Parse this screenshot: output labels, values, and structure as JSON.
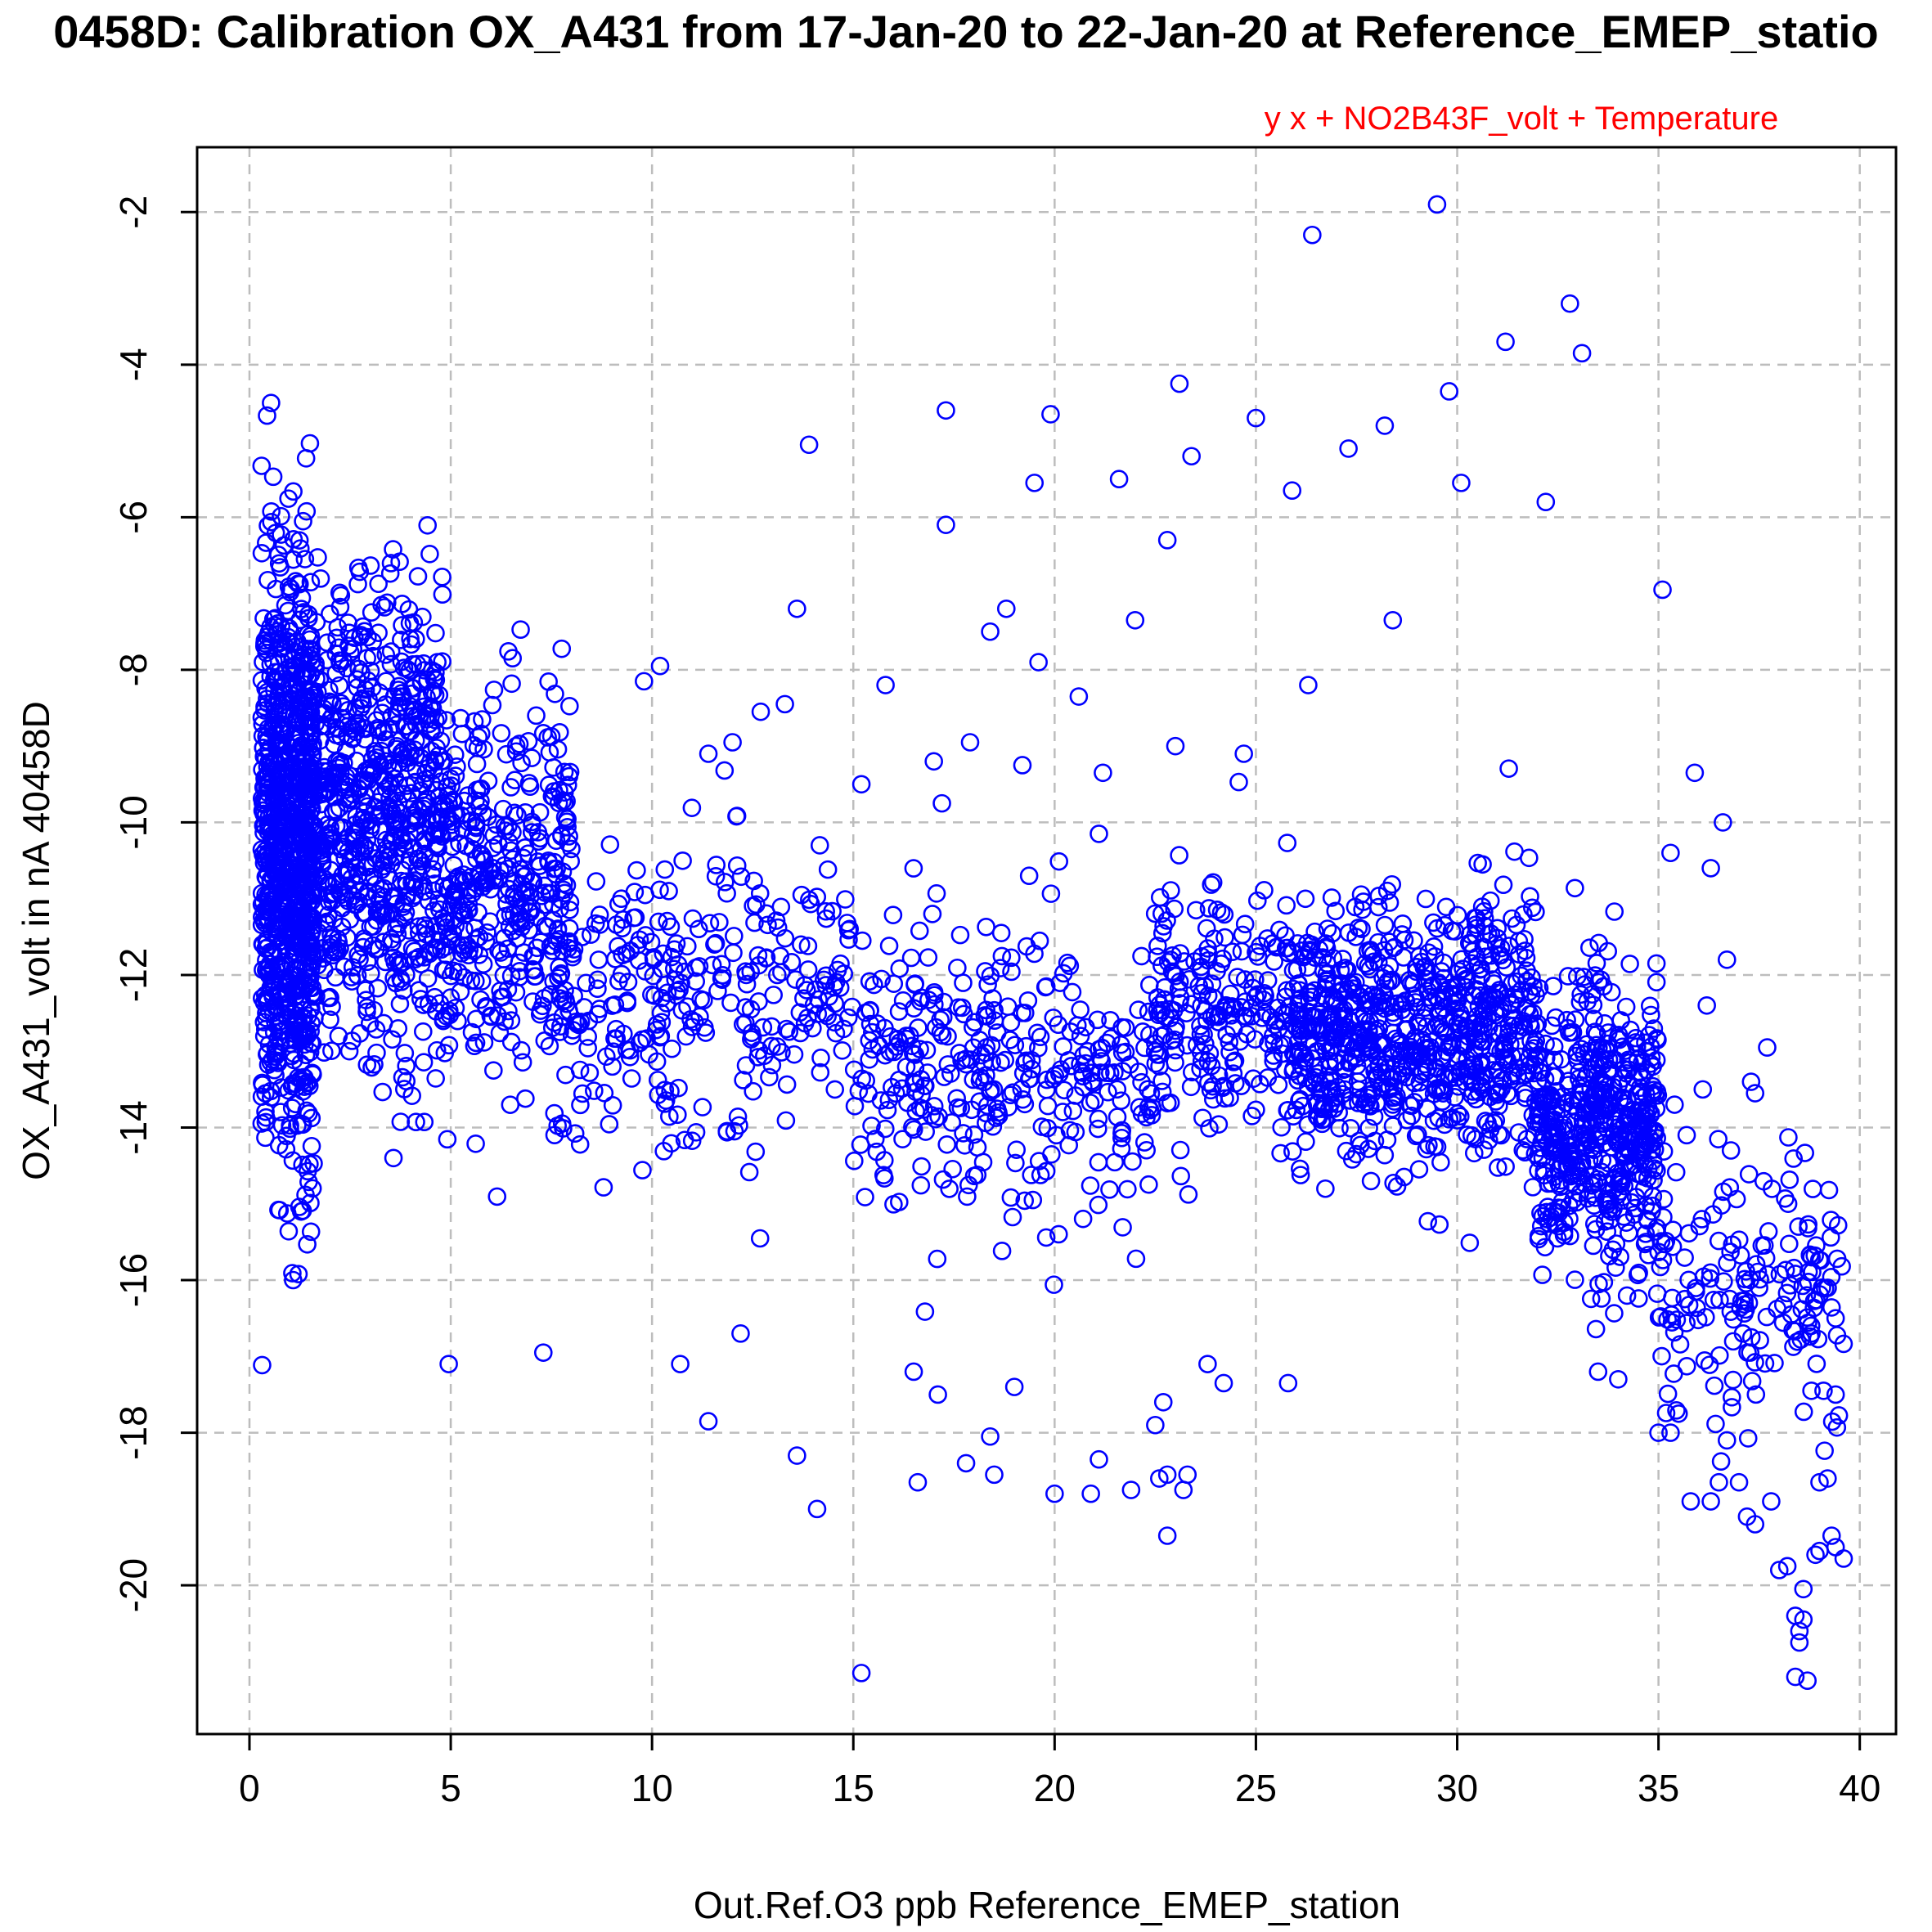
{
  "chart_data": {
    "type": "scatter",
    "title": "0458D: Calibration OX_A431 from 17-Jan-20 to 22-Jan-20 at Reference_EMEP_statio",
    "subtitle": "y x + NO2B43F_volt + Temperature",
    "xlabel": "Out.Ref.O3 ppb Reference_EMEP_station",
    "ylabel": "OX_A431_volt in nA 40458D",
    "xlim": [
      -1.3,
      40.9
    ],
    "ylim": [
      -21.95,
      -1.15
    ],
    "xticks": [
      0,
      5,
      10,
      15,
      20,
      25,
      30,
      35,
      40
    ],
    "yticks": [
      -20,
      -18,
      -16,
      -14,
      -12,
      -10,
      -8,
      -6,
      -4,
      -2
    ],
    "xtick_labels": [
      "0",
      "5",
      "10",
      "15",
      "20",
      "25",
      "30",
      "35",
      "40"
    ],
    "ytick_labels": [
      "-20",
      "-18",
      "-16",
      "-14",
      "-12",
      "-10",
      "-8",
      "-6",
      "-4",
      "-2"
    ],
    "grid": true,
    "marker": "open-circle",
    "clusters": [
      {
        "x_range": [
          0.3,
          1.6
        ],
        "y_center": -10.5,
        "y_spread": 3.8,
        "count": 900
      },
      {
        "x_range": [
          1.4,
          4.8
        ],
        "y_center": -10.0,
        "y_spread": 3.0,
        "count": 750
      },
      {
        "x_range": [
          4.8,
          8.0
        ],
        "y_center": -11.0,
        "y_spread": 2.6,
        "count": 380
      },
      {
        "x_range": [
          7.5,
          15.0
        ],
        "y_center": -12.3,
        "y_spread": 1.9,
        "count": 300
      },
      {
        "x_range": [
          15.0,
          22.5
        ],
        "y_center": -13.2,
        "y_spread": 1.9,
        "count": 340
      },
      {
        "x_range": [
          22.5,
          26.0
        ],
        "y_center": -12.5,
        "y_spread": 1.7,
        "count": 220
      },
      {
        "x_range": [
          26.0,
          30.0
        ],
        "y_center": -12.8,
        "y_spread": 1.6,
        "count": 520
      },
      {
        "x_range": [
          30.0,
          32.0
        ],
        "y_center": -12.7,
        "y_spread": 1.8,
        "count": 260
      },
      {
        "x_range": [
          32.0,
          35.0
        ],
        "y_center": -14.0,
        "y_spread": 1.9,
        "count": 520
      },
      {
        "x_range": [
          35.0,
          39.6
        ],
        "y_center": -16.2,
        "y_spread": 1.6,
        "count": 170
      }
    ],
    "points": [
      [
        29.5,
        -1.9
      ],
      [
        26.4,
        -2.3
      ],
      [
        32.8,
        -3.2
      ],
      [
        33.1,
        -3.85
      ],
      [
        31.2,
        -3.7
      ],
      [
        29.8,
        -4.35
      ],
      [
        23.1,
        -4.25
      ],
      [
        17.3,
        -4.6
      ],
      [
        19.9,
        -4.65
      ],
      [
        25.0,
        -4.7
      ],
      [
        28.2,
        -4.8
      ],
      [
        13.9,
        -5.05
      ],
      [
        27.3,
        -5.1
      ],
      [
        23.4,
        -5.2
      ],
      [
        21.6,
        -5.5
      ],
      [
        19.5,
        -5.55
      ],
      [
        30.1,
        -5.55
      ],
      [
        25.9,
        -5.65
      ],
      [
        32.2,
        -5.8
      ],
      [
        17.3,
        -6.1
      ],
      [
        22.8,
        -6.3
      ],
      [
        35.1,
        -6.95
      ],
      [
        13.6,
        -7.2
      ],
      [
        22.0,
        -7.35
      ],
      [
        18.8,
        -7.2
      ],
      [
        18.4,
        -7.5
      ],
      [
        28.4,
        -7.35
      ],
      [
        19.6,
        -7.9
      ],
      [
        15.8,
        -8.2
      ],
      [
        26.3,
        -8.2
      ],
      [
        20.6,
        -8.35
      ],
      [
        17.9,
        -8.95
      ],
      [
        17.0,
        -9.2
      ],
      [
        19.2,
        -9.25
      ],
      [
        21.2,
        -9.35
      ],
      [
        10.2,
        -7.95
      ],
      [
        9.8,
        -8.15
      ],
      [
        12.0,
        -8.95
      ],
      [
        11.4,
        -9.1
      ],
      [
        13.3,
        -8.45
      ],
      [
        12.7,
        -8.55
      ],
      [
        15.2,
        -9.5
      ],
      [
        17.2,
        -9.75
      ],
      [
        21.1,
        -10.15
      ],
      [
        23.0,
        -9.0
      ],
      [
        24.7,
        -9.1
      ],
      [
        35.9,
        -9.35
      ],
      [
        35.3,
        -10.4
      ],
      [
        36.3,
        -10.6
      ],
      [
        36.6,
        -10.0
      ],
      [
        4.95,
        -17.1
      ],
      [
        7.3,
        -16.95
      ],
      [
        10.7,
        -17.1
      ],
      [
        11.4,
        -17.85
      ],
      [
        12.2,
        -16.7
      ],
      [
        13.6,
        -18.3
      ],
      [
        14.1,
        -19.0
      ],
      [
        15.2,
        -21.15
      ],
      [
        16.6,
        -18.65
      ],
      [
        16.5,
        -17.2
      ],
      [
        18.4,
        -18.05
      ],
      [
        18.5,
        -18.55
      ],
      [
        17.8,
        -18.4
      ],
      [
        17.1,
        -17.5
      ],
      [
        20.0,
        -18.8
      ],
      [
        20.9,
        -18.8
      ],
      [
        21.1,
        -18.35
      ],
      [
        21.9,
        -18.75
      ],
      [
        22.5,
        -17.9
      ],
      [
        22.6,
        -18.6
      ],
      [
        22.8,
        -19.35
      ],
      [
        23.2,
        -18.75
      ],
      [
        23.3,
        -18.55
      ],
      [
        22.8,
        -18.55
      ],
      [
        22.7,
        -17.6
      ],
      [
        19.0,
        -17.4
      ],
      [
        23.8,
        -17.1
      ],
      [
        24.2,
        -17.35
      ],
      [
        25.8,
        -17.35
      ],
      [
        33.5,
        -17.2
      ],
      [
        34.0,
        -17.3
      ],
      [
        35.3,
        -18.0
      ],
      [
        35.5,
        -17.75
      ],
      [
        35.0,
        -18.0
      ],
      [
        36.3,
        -18.9
      ],
      [
        35.8,
        -18.9
      ],
      [
        36.5,
        -18.65
      ],
      [
        37.0,
        -18.65
      ],
      [
        37.2,
        -19.1
      ],
      [
        37.4,
        -19.2
      ],
      [
        36.7,
        -18.1
      ],
      [
        37.8,
        -18.9
      ],
      [
        38.0,
        -19.8
      ],
      [
        38.2,
        -19.75
      ],
      [
        38.4,
        -20.4
      ],
      [
        38.5,
        -20.6
      ],
      [
        38.5,
        -20.75
      ],
      [
        38.6,
        -20.45
      ],
      [
        38.6,
        -20.05
      ],
      [
        38.4,
        -21.2
      ],
      [
        38.7,
        -21.25
      ],
      [
        38.9,
        -19.6
      ],
      [
        39.0,
        -19.55
      ],
      [
        39.3,
        -19.35
      ],
      [
        39.4,
        -19.5
      ],
      [
        39.6,
        -19.65
      ],
      [
        39.0,
        -18.65
      ],
      [
        39.2,
        -18.6
      ],
      [
        39.1,
        -17.45
      ],
      [
        39.4,
        -17.5
      ],
      [
        38.8,
        -17.45
      ],
      [
        39.4,
        -16.5
      ],
      [
        38.8,
        -16.7
      ],
      [
        38.3,
        -16.45
      ],
      [
        37.5,
        -16.1
      ],
      [
        37.3,
        -13.4
      ],
      [
        37.4,
        -13.55
      ],
      [
        37.7,
        -12.95
      ],
      [
        35.7,
        -14.1
      ],
      [
        36.2,
        -12.4
      ],
      [
        35.4,
        -13.7
      ],
      [
        36.7,
        -11.8
      ],
      [
        36.8,
        -14.3
      ],
      [
        37.1,
        -16.7
      ],
      [
        36.1,
        -13.5
      ]
    ]
  }
}
